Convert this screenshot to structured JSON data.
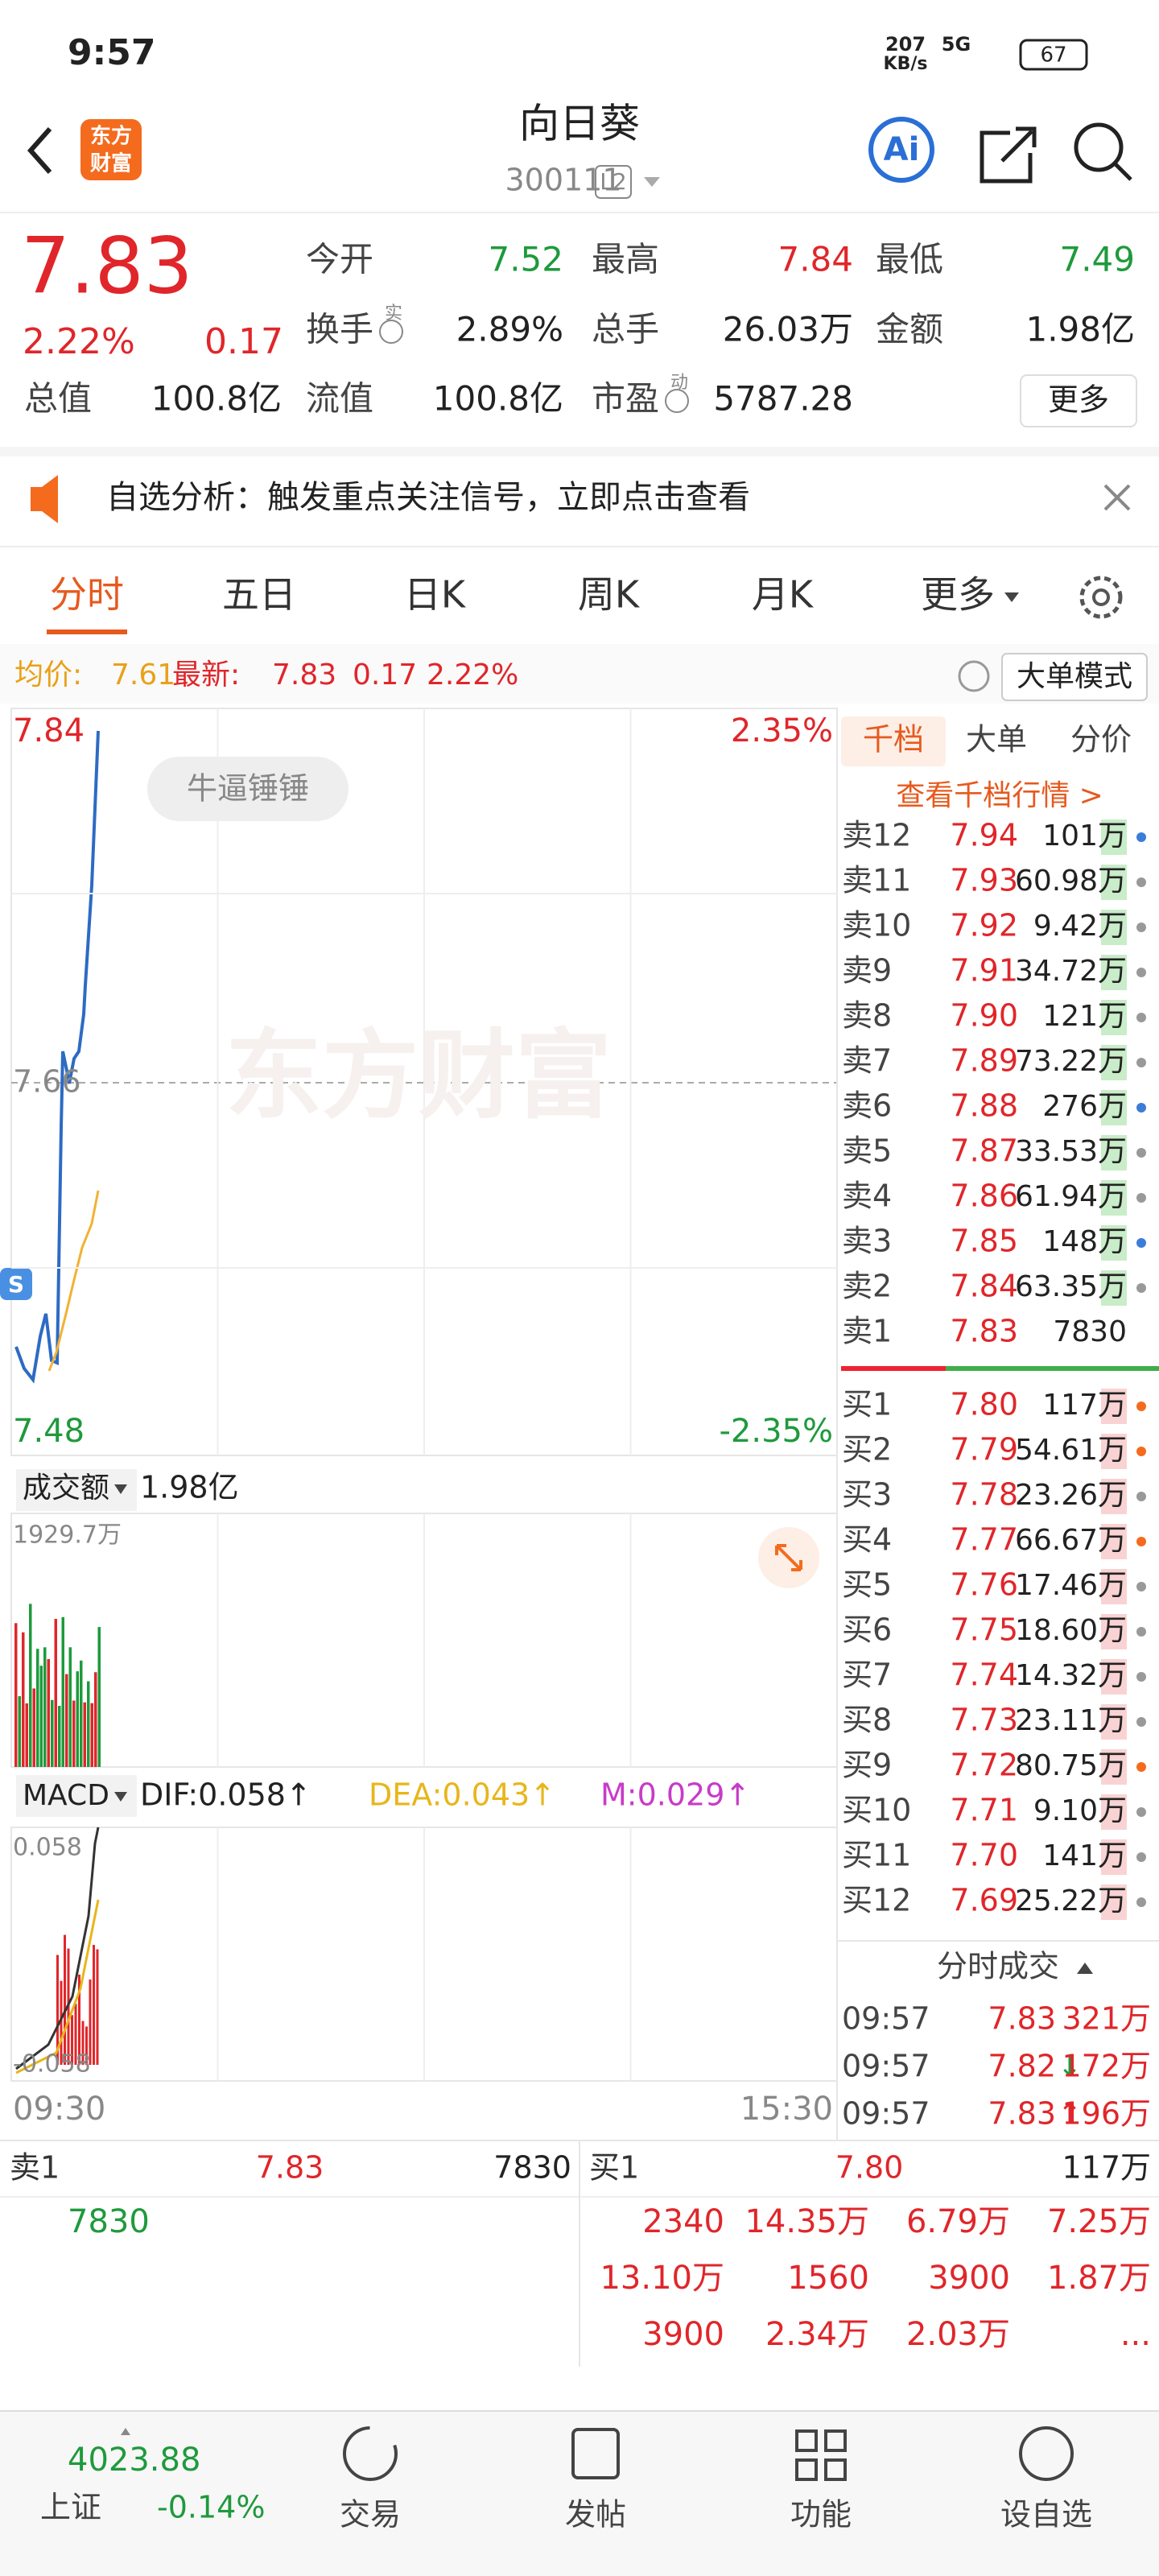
{
  "status_bar": {
    "time": "9:57",
    "net_speed": "207",
    "net_unit": "KB/s",
    "network": "5G",
    "battery": "67"
  },
  "header": {
    "logo": [
      "东方",
      "财富"
    ],
    "title": "向日葵",
    "code": "300111",
    "level": "L2"
  },
  "quote": {
    "price": "7.83",
    "change_pct": "2.22%",
    "change": "0.17",
    "fields": [
      {
        "label": "今开",
        "value": "7.52"
      },
      {
        "label": "最高",
        "value": "7.84"
      },
      {
        "label": "最低",
        "value": "7.49"
      },
      {
        "label": "换手",
        "sup": "实",
        "value": "2.89%"
      },
      {
        "label": "总手",
        "value": "26.03万"
      },
      {
        "label": "金额",
        "value": "1.98亿"
      },
      {
        "label": "总值",
        "value": "100.8亿"
      },
      {
        "label": "流值",
        "value": "100.8亿"
      },
      {
        "label": "市盈",
        "sup": "动",
        "value": "5787.28"
      }
    ],
    "more": "更多"
  },
  "notice": "自选分析：触发重点关注信号，立即点击查看",
  "tabs": [
    "分时",
    "五日",
    "日K",
    "周K",
    "月K",
    "更多"
  ],
  "info_bar": {
    "avg_label": "均价:",
    "avg": "7.61",
    "latest_label": "最新:",
    "latest": "7.83",
    "change": "0.17",
    "change_pct": "2.22%",
    "mode_button": "大单模式"
  },
  "chart": {
    "watermark": "东方财富",
    "bubble": "牛逼锤锤",
    "marker": "S",
    "price_high": "7.84",
    "pct_high": "2.35%",
    "price_mid": "7.66",
    "price_low": "7.48",
    "pct_low": "-2.35%",
    "times": [
      "09:30",
      "15:30"
    ]
  },
  "volume": {
    "label": "成交额",
    "total": "1.98亿",
    "max": "1929.7万"
  },
  "macd": {
    "label": "MACD",
    "dif": "DIF:0.058↑",
    "dea": "DEA:0.043↑",
    "m": "M:0.029↑",
    "max": "0.058",
    "min": "-0.058"
  },
  "order_book": {
    "tabs": [
      "千档",
      "大单",
      "分价"
    ],
    "link": "查看千档行情 >",
    "asks": [
      {
        "label": "卖12",
        "price": "7.94",
        "volume": "101万"
      },
      {
        "label": "卖11",
        "price": "7.93",
        "volume": "60.98万"
      },
      {
        "label": "卖10",
        "price": "7.92",
        "volume": "9.42万"
      },
      {
        "label": "卖9",
        "price": "7.91",
        "volume": "34.72万"
      },
      {
        "label": "卖8",
        "price": "7.90",
        "volume": "121万"
      },
      {
        "label": "卖7",
        "price": "7.89",
        "volume": "73.22万"
      },
      {
        "label": "卖6",
        "price": "7.88",
        "volume": "276万"
      },
      {
        "label": "卖5",
        "price": "7.87",
        "volume": "33.53万"
      },
      {
        "label": "卖4",
        "price": "7.86",
        "volume": "61.94万"
      },
      {
        "label": "卖3",
        "price": "7.85",
        "volume": "148万"
      },
      {
        "label": "卖2",
        "price": "7.84",
        "volume": "63.35万"
      },
      {
        "label": "卖1",
        "price": "7.83",
        "volume": "7830"
      }
    ],
    "bids": [
      {
        "label": "买1",
        "price": "7.80",
        "volume": "117万"
      },
      {
        "label": "买2",
        "price": "7.79",
        "volume": "54.61万"
      },
      {
        "label": "买3",
        "price": "7.78",
        "volume": "23.26万"
      },
      {
        "label": "买4",
        "price": "7.77",
        "volume": "66.67万"
      },
      {
        "label": "买5",
        "price": "7.76",
        "volume": "17.46万"
      },
      {
        "label": "买6",
        "price": "7.75",
        "volume": "18.60万"
      },
      {
        "label": "买7",
        "price": "7.74",
        "volume": "14.32万"
      },
      {
        "label": "买8",
        "price": "7.73",
        "volume": "23.11万"
      },
      {
        "label": "买9",
        "price": "7.72",
        "volume": "80.75万"
      },
      {
        "label": "买10",
        "price": "7.71",
        "volume": "9.10万"
      },
      {
        "label": "买11",
        "price": "7.70",
        "volume": "141万"
      },
      {
        "label": "买12",
        "price": "7.69",
        "volume": "25.22万"
      }
    ]
  },
  "trades": {
    "title": "分时成交",
    "rows": [
      {
        "time": "09:57",
        "price": "7.83",
        "volume": "321万"
      },
      {
        "time": "09:57",
        "price": "7.82",
        "volume": "172万"
      },
      {
        "time": "09:57",
        "price": "7.83",
        "volume": "196万"
      }
    ]
  },
  "level1": {
    "ask_label": "卖1",
    "ask_price": "7.83",
    "ask_volume": "7830",
    "bid_label": "买1",
    "bid_price": "7.80",
    "bid_volume": "117万",
    "ask_queue": [
      "7830"
    ],
    "bid_queue": [
      "2340",
      "14.35万",
      "6.79万",
      "7.25万",
      "13.10万",
      "1560",
      "3900",
      "1.87万",
      "3900",
      "2.34万",
      "2.03万",
      "..."
    ]
  },
  "nav": {
    "index_value": "4023.88",
    "index_name": "上证",
    "index_change": "-0.14%",
    "items": [
      "交易",
      "发帖",
      "功能",
      "设自选"
    ]
  }
}
